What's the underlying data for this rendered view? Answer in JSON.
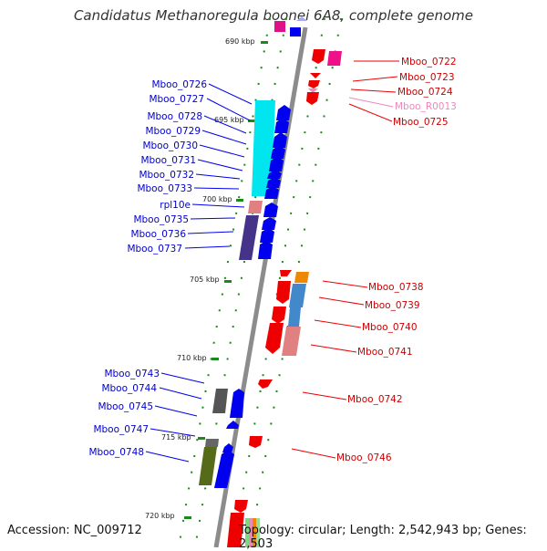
{
  "title": "Candidatus Methanoregula boonei 6A8, complete genome",
  "accession_label": "Accession: NC_009712",
  "topology_label": "Topology: circular; Length: 2,542,943 bp; Genes: 2,503",
  "scale_labels": [
    "690 kbp",
    "695 kbp",
    "700 kbp",
    "705 kbp",
    "710 kbp",
    "715 kbp",
    "720 kbp"
  ],
  "left_genes": [
    "Mboo_0726",
    "Mboo_0727",
    "Mboo_0728",
    "Mboo_0729",
    "Mboo_0730",
    "Mboo_0731",
    "Mboo_0732",
    "Mboo_0733",
    "rpl10e",
    "Mboo_0735",
    "Mboo_0736",
    "Mboo_0737",
    "Mboo_0743",
    "Mboo_0744",
    "Mboo_0745",
    "Mboo_0747",
    "Mboo_0748"
  ],
  "right_genes": [
    "Mboo_0722",
    "Mboo_0723",
    "Mboo_0724",
    "Mboo_R0013",
    "Mboo_0725",
    "Mboo_0738",
    "Mboo_0739",
    "Mboo_0740",
    "Mboo_0741",
    "Mboo_0742",
    "Mboo_0746"
  ],
  "colors": {
    "forward_strand": "#0000ee",
    "reverse_strand": "#ee0000",
    "rna_gene": "#ee88bb",
    "backbone": "#8c8c8c",
    "tick": "#1a8a1a"
  }
}
